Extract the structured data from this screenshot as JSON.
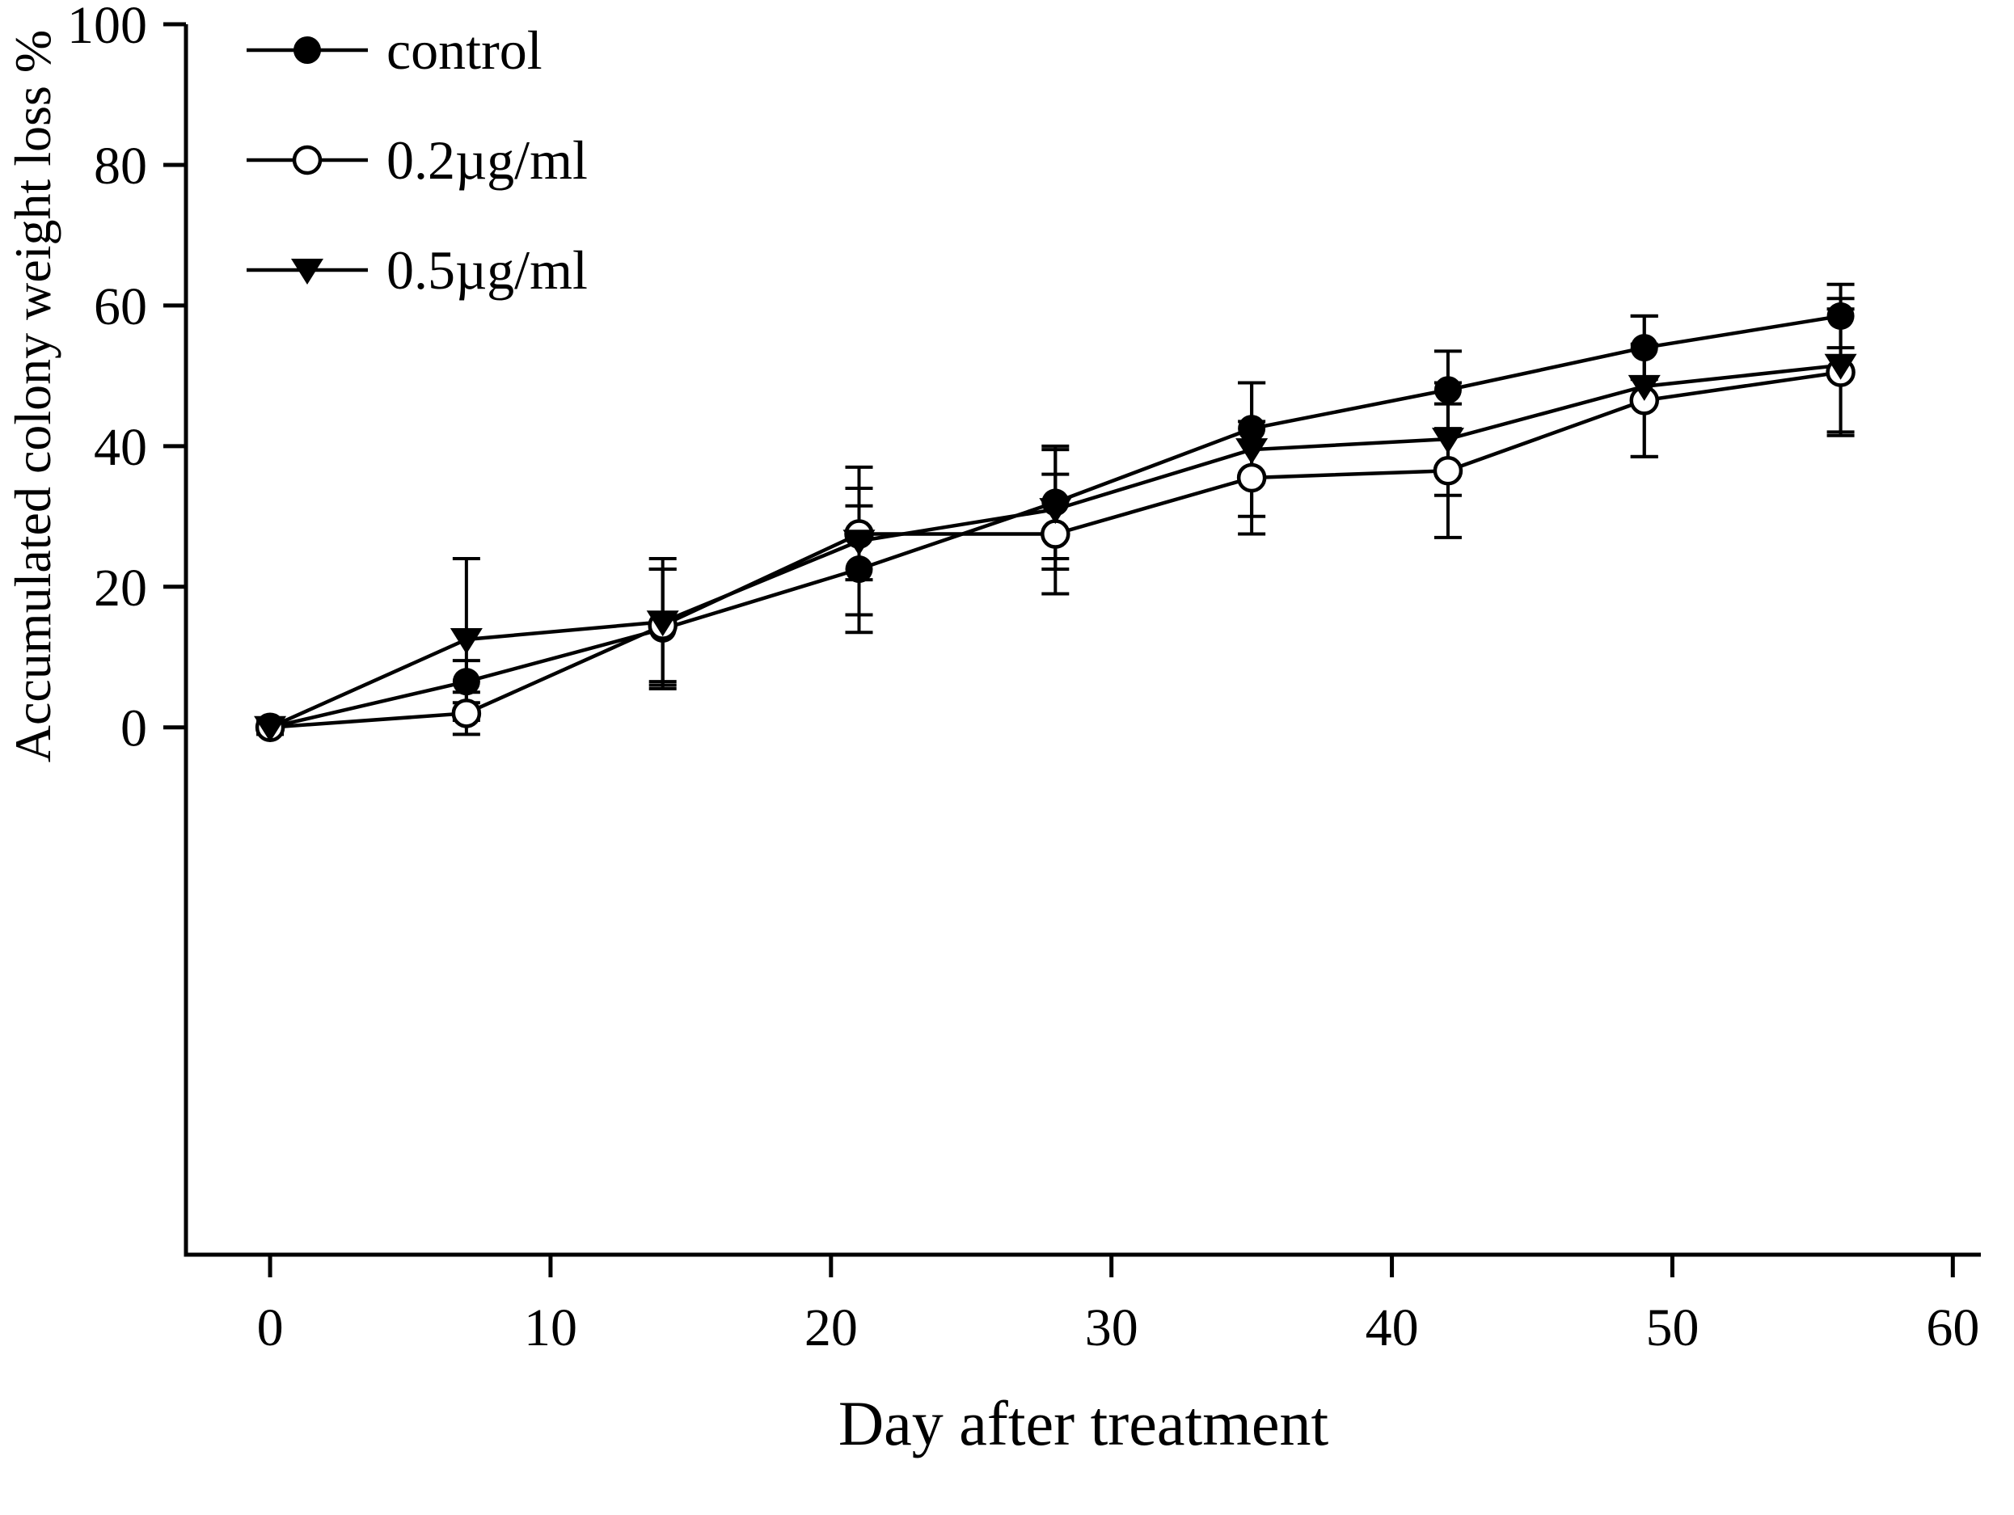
{
  "figure": {
    "background": "#ffffff",
    "ink": "#000000"
  },
  "chart_data": {
    "type": "line",
    "title": "",
    "xlabel": "Day after treatment",
    "ylabel": "Accumulated colony weight loss %",
    "x": [
      0,
      7,
      14,
      21,
      28,
      35,
      42,
      49,
      56
    ],
    "xticks": [
      0,
      10,
      20,
      30,
      40,
      50,
      60
    ],
    "yticks": [
      0,
      20,
      40,
      60,
      80,
      100
    ],
    "xlim": [
      -3,
      61
    ],
    "ylim": [
      -75,
      100
    ],
    "grid": false,
    "legend_position": "top-left-inside",
    "series": [
      {
        "name": "control",
        "marker": "filled-circle",
        "color": "#000000",
        "values": [
          0,
          6.5,
          14,
          22.5,
          32,
          42.5,
          48,
          54,
          58.5
        ],
        "errors": [
          0.5,
          3,
          8.5,
          9,
          8,
          6.5,
          5.5,
          4.5,
          4.5
        ]
      },
      {
        "name": "0.2µg/ml",
        "marker": "open-circle",
        "color": "#000000",
        "values": [
          0,
          2,
          14.5,
          27.5,
          27.5,
          35.5,
          36.5,
          46.5,
          50.5
        ],
        "errors": [
          0.5,
          3,
          8,
          6.5,
          8.5,
          8,
          9.5,
          8,
          9
        ]
      },
      {
        "name": "0.5µg/ml",
        "marker": "filled-triangle-down",
        "color": "#000000",
        "values": [
          0,
          12.5,
          15,
          26.5,
          31,
          39.5,
          41,
          48.5,
          51.5
        ],
        "errors": [
          1,
          11.5,
          9,
          10.5,
          8.5,
          9.5,
          8,
          10,
          9.5
        ]
      }
    ]
  }
}
